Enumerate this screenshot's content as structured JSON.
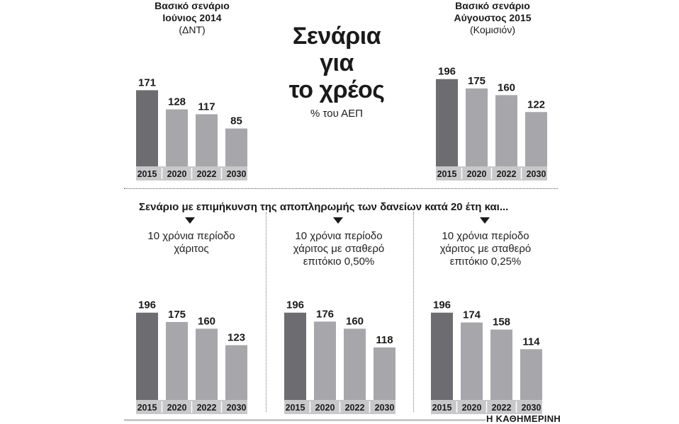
{
  "main_title": [
    "Σενάρια",
    "για",
    "το χρέος"
  ],
  "main_subtitle": "% του ΑΕΠ",
  "section_header": "Σενάριο με επιμήκυνση της αποπληρωμής των δανείων κατά 20 έτη και...",
  "source": "Η ΚΑΘΗΜΕΡΙΝΗ",
  "colors": {
    "first_bar": "#6d6d71",
    "other_bars": "#a7a7ab",
    "axis_bar": "#c8c8cb"
  },
  "chart_data": [
    {
      "type": "bar",
      "title": [
        "Βασικό σενάριο",
        "Ιούνιος 2014"
      ],
      "subtitle": "(ΔΝΤ)",
      "categories": [
        "2015",
        "2020",
        "2022",
        "2030"
      ],
      "values": [
        171,
        128,
        117,
        85
      ],
      "ylim": [
        0,
        200
      ]
    },
    {
      "type": "bar",
      "title": [
        "Βασικό σενάριο",
        "Αύγουστος 2015"
      ],
      "subtitle": "(Κομισιόν)",
      "categories": [
        "2015",
        "2020",
        "2022",
        "2030"
      ],
      "values": [
        196,
        175,
        160,
        122
      ],
      "ylim": [
        0,
        200
      ]
    },
    {
      "type": "bar",
      "title": [
        "10 χρόνια περίοδο",
        "χάριτος"
      ],
      "categories": [
        "2015",
        "2020",
        "2022",
        "2030"
      ],
      "values": [
        196,
        175,
        160,
        123
      ],
      "ylim": [
        0,
        200
      ]
    },
    {
      "type": "bar",
      "title": [
        "10 χρόνια περίοδο",
        "χάριτος με σταθερό",
        "επιτόκιο 0,50%"
      ],
      "categories": [
        "2015",
        "2020",
        "2022",
        "2030"
      ],
      "values": [
        196,
        176,
        160,
        118
      ],
      "ylim": [
        0,
        200
      ]
    },
    {
      "type": "bar",
      "title": [
        "10 χρόνια περίοδο",
        "χάριτος με σταθερό",
        "επιτόκιο 0,25%"
      ],
      "categories": [
        "2015",
        "2020",
        "2022",
        "2030"
      ],
      "values": [
        196,
        174,
        158,
        114
      ],
      "ylim": [
        0,
        200
      ]
    }
  ]
}
